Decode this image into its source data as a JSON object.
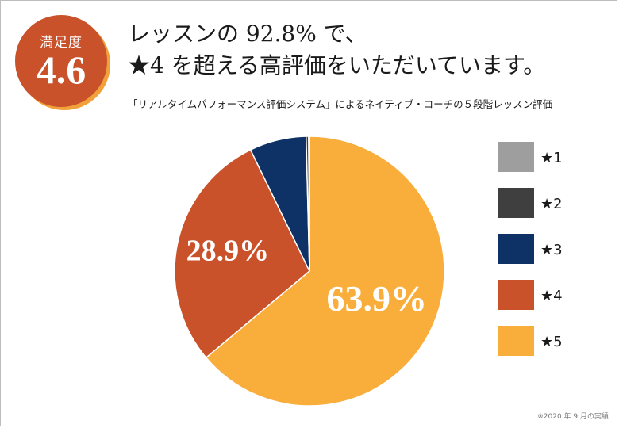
{
  "badge": {
    "label": "満足度",
    "score": "4.6",
    "color": "#c9522a",
    "shadow_color": "#f2a13a"
  },
  "headline": {
    "line1": "レッスンの 92.8% で、",
    "line2": "★4 を超える高評価をいただいています。"
  },
  "subhead": "「リアルタイムパフォーマンス評価システム」によるネイティブ・コーチの５段階レッスン評価",
  "footnote": "※2020 年 9 月の実績",
  "chart_data": {
    "type": "pie",
    "start": "12 o'clock, clockwise",
    "slices": [
      {
        "name": "★5",
        "value": 63.9,
        "color": "#f9ad3b",
        "label": "63.9%"
      },
      {
        "name": "★4",
        "value": 28.9,
        "color": "#c9522a",
        "label": "28.9%"
      },
      {
        "name": "★3",
        "value": 6.8,
        "color": "#0e3166",
        "label": ""
      },
      {
        "name": "★2",
        "value": 0.3,
        "color": "#3f3f3f",
        "label": ""
      },
      {
        "name": "★1",
        "value": 0.1,
        "color": "#9e9e9e",
        "label": ""
      }
    ],
    "legend": [
      {
        "name": "★1",
        "color": "#9e9e9e"
      },
      {
        "name": "★2",
        "color": "#3f3f3f"
      },
      {
        "name": "★3",
        "color": "#0e3166"
      },
      {
        "name": "★4",
        "color": "#c9522a"
      },
      {
        "name": "★5",
        "color": "#f9ad3b"
      }
    ],
    "legend_placement": "right"
  }
}
